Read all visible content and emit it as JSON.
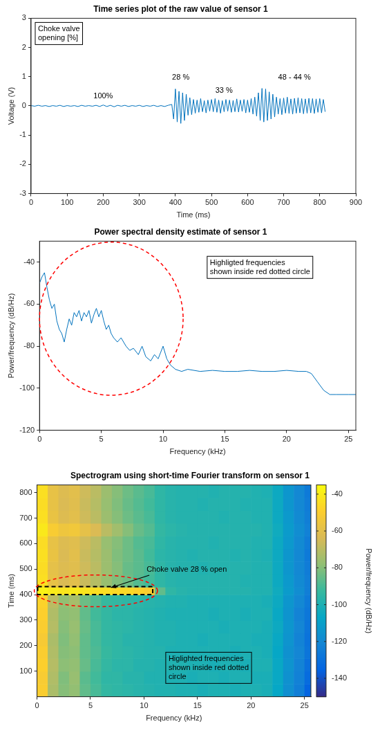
{
  "chart_data": [
    {
      "type": "line",
      "title": "Time series plot of the raw value of sensor 1",
      "x_label": "Time (ms)",
      "y_label": "Voltage (V)",
      "color": "#0072bd",
      "grid": false,
      "xlim": [
        0,
        900
      ],
      "xticks": [
        0,
        100,
        200,
        300,
        400,
        500,
        600,
        700,
        800,
        900
      ],
      "ylim": [
        -3,
        3
      ],
      "yticks": [
        -3,
        -2,
        -1,
        0,
        1,
        2,
        3
      ],
      "text_box": [
        "Choke valve",
        "opening [%]"
      ],
      "annotations": [
        "100%",
        "28 %",
        "33 %",
        "48 - 44 %"
      ],
      "x": [
        0,
        10,
        20,
        30,
        40,
        50,
        60,
        70,
        80,
        90,
        100,
        110,
        120,
        130,
        140,
        150,
        160,
        170,
        180,
        190,
        200,
        210,
        220,
        230,
        240,
        250,
        260,
        270,
        280,
        290,
        300,
        310,
        320,
        330,
        340,
        350,
        360,
        370,
        380,
        390,
        395,
        400,
        405,
        410,
        415,
        420,
        425,
        430,
        435,
        440,
        445,
        450,
        455,
        460,
        465,
        470,
        475,
        480,
        485,
        490,
        495,
        500,
        505,
        510,
        515,
        520,
        525,
        530,
        535,
        540,
        545,
        550,
        555,
        560,
        565,
        570,
        575,
        580,
        585,
        590,
        595,
        600,
        605,
        610,
        615,
        620,
        625,
        630,
        635,
        640,
        645,
        650,
        655,
        660,
        665,
        670,
        675,
        680,
        685,
        690,
        695,
        700,
        705,
        710,
        715,
        720,
        725,
        730,
        735,
        740,
        745,
        750,
        755,
        760,
        765,
        770,
        775,
        780,
        785,
        790,
        795,
        800,
        805,
        810,
        815
      ],
      "values": [
        0.01,
        -0.01,
        0.02,
        -0.01,
        0.01,
        -0.02,
        0.01,
        -0.01,
        0.02,
        -0.02,
        0.01,
        -0.01,
        0.01,
        -0.02,
        0.02,
        -0.01,
        0.01,
        -0.01,
        0.02,
        -0.02,
        0.03,
        -0.02,
        0.02,
        -0.03,
        0.02,
        -0.01,
        0.02,
        -0.02,
        0.01,
        -0.01,
        0.02,
        -0.02,
        0.01,
        -0.01,
        0.02,
        -0.02,
        0.01,
        -0.02,
        0.02,
        0.05,
        -0.45,
        0.58,
        -0.55,
        0.5,
        -0.6,
        0.45,
        -0.5,
        0.4,
        -0.32,
        0.28,
        -0.3,
        0.22,
        -0.25,
        0.2,
        -0.22,
        0.25,
        -0.2,
        0.18,
        -0.24,
        0.2,
        -0.18,
        0.22,
        -0.2,
        0.25,
        -0.22,
        0.2,
        -0.25,
        0.18,
        -0.2,
        0.22,
        -0.18,
        0.2,
        -0.22,
        0.19,
        -0.2,
        0.24,
        -0.21,
        0.2,
        -0.19,
        0.22,
        -0.24,
        0.2,
        -0.22,
        0.25,
        -0.28,
        0.3,
        -0.35,
        0.45,
        -0.5,
        0.6,
        -0.55,
        0.58,
        -0.5,
        0.48,
        -0.45,
        0.4,
        -0.38,
        0.3,
        -0.28,
        0.25,
        -0.3,
        0.27,
        -0.25,
        0.3,
        -0.26,
        0.24,
        -0.28,
        0.26,
        -0.25,
        0.28,
        -0.24,
        0.25,
        -0.27,
        0.24,
        -0.25,
        0.26,
        -0.24,
        0.25,
        -0.26,
        0.24,
        -0.22,
        0.25,
        -0.24,
        0.22,
        -0.2
      ]
    },
    {
      "type": "line",
      "title": "Power spectral density estimate of sensor 1",
      "x_label": "Frequency (kHz)",
      "y_label": "Power/frequency (dB/Hz)",
      "color": "#0072bd",
      "grid": false,
      "xlim": [
        0,
        25.6
      ],
      "xticks": [
        0,
        5,
        10,
        15,
        20,
        25
      ],
      "ylim": [
        -120,
        -30
      ],
      "yticks": [
        -120,
        -100,
        -80,
        -60,
        -40
      ],
      "text_box": [
        "Highligted frequencies",
        "shown inside red dotted circle"
      ],
      "x": [
        0,
        0.2,
        0.4,
        0.6,
        0.8,
        1,
        1.2,
        1.4,
        1.6,
        1.8,
        2,
        2.2,
        2.4,
        2.6,
        2.8,
        3,
        3.2,
        3.4,
        3.6,
        3.8,
        4,
        4.2,
        4.4,
        4.6,
        4.8,
        5,
        5.2,
        5.4,
        5.6,
        5.8,
        6,
        6.3,
        6.6,
        7,
        7.3,
        7.6,
        8,
        8.3,
        8.6,
        9,
        9.3,
        9.6,
        10,
        10.3,
        10.6,
        11,
        11.5,
        12,
        13,
        14,
        15,
        16,
        17,
        18,
        19,
        20,
        21,
        21.6,
        22,
        22.5,
        23,
        23.5,
        24,
        25,
        25.6
      ],
      "values": [
        -50,
        -47,
        -45,
        -52,
        -58,
        -62,
        -60,
        -68,
        -72,
        -74,
        -78,
        -72,
        -67,
        -70,
        -64,
        -66,
        -63,
        -68,
        -64,
        -66,
        -63,
        -69,
        -65,
        -62,
        -66,
        -63,
        -68,
        -72,
        -70,
        -74,
        -76,
        -78,
        -76,
        -80,
        -82,
        -81,
        -84,
        -80,
        -85,
        -87,
        -84,
        -86,
        -80,
        -86,
        -89,
        -91,
        -92,
        -91,
        -92,
        -91.5,
        -92,
        -92,
        -91.5,
        -92,
        -92,
        -91.5,
        -92,
        -92,
        -93,
        -97,
        -101,
        -103,
        -103,
        -103,
        -103
      ]
    },
    {
      "type": "heatmap",
      "title": "Spectrogram using short-time Fourier transform on sensor 1",
      "x_label": "Frequency (kHz)",
      "y_label": "Time (ms)",
      "grid": false,
      "xlim": [
        0,
        25.6
      ],
      "xticks": [
        0,
        5,
        10,
        15,
        20,
        25
      ],
      "ylim": [
        0,
        830
      ],
      "yticks": [
        100,
        200,
        300,
        400,
        500,
        600,
        700,
        800
      ],
      "text_box": [
        "Higlighted frequencies",
        "shown inside red dotted",
        "circle"
      ],
      "annotations": [
        "Choke valve 28 % open"
      ],
      "colorbar": {
        "label": "Power/frequency (dB/Hz)",
        "range": [
          -150,
          -35
        ],
        "ticks": [
          -140,
          -120,
          -100,
          -80,
          -60,
          -40
        ]
      },
      "x_edges": [
        0,
        1,
        2,
        3,
        4,
        5,
        6,
        7,
        8,
        9,
        10,
        11,
        12,
        13,
        14,
        15,
        16,
        17,
        18,
        19,
        20,
        21,
        22,
        23,
        24,
        25,
        25.6
      ],
      "y_edges": [
        0,
        50,
        100,
        150,
        200,
        250,
        300,
        350,
        400,
        430,
        480,
        530,
        580,
        630,
        680,
        730,
        780,
        830
      ],
      "cells": [
        [
          -50,
          -73,
          -80,
          -78,
          -86,
          -90,
          -94,
          -95,
          -96,
          -97,
          -98,
          -99,
          -99,
          -100,
          -100,
          -101,
          -100,
          -100,
          -101,
          -100,
          -100,
          -101,
          -107,
          -117,
          -124,
          -135
        ],
        [
          -51,
          -72,
          -81,
          -77,
          -87,
          -91,
          -95,
          -95,
          -97,
          -97,
          -99,
          -99,
          -100,
          -100,
          -101,
          -100,
          -100,
          -101,
          -100,
          -100,
          -101,
          -101,
          -106,
          -116,
          -123,
          -132
        ],
        [
          -49,
          -71,
          -79,
          -78,
          -85,
          -90,
          -94,
          -96,
          -96,
          -98,
          -98,
          -99,
          -99,
          -99,
          -100,
          -100,
          -101,
          -100,
          -100,
          -101,
          -100,
          -100,
          -106,
          -115,
          -122,
          -130
        ],
        [
          -50,
          -72,
          -80,
          -79,
          -86,
          -89,
          -93,
          -95,
          -96,
          -97,
          -98,
          -98,
          -100,
          -100,
          -100,
          -100,
          -100,
          -100,
          -101,
          -100,
          -100,
          -101,
          -107,
          -116,
          -121,
          -128
        ],
        [
          -52,
          -73,
          -81,
          -78,
          -86,
          -90,
          -94,
          -95,
          -97,
          -97,
          -98,
          -99,
          -99,
          -100,
          -100,
          -101,
          -100,
          -100,
          -100,
          -100,
          -101,
          -101,
          -106,
          -115,
          -122,
          -129
        ],
        [
          -50,
          -71,
          -80,
          -77,
          -85,
          -90,
          -94,
          -95,
          -96,
          -97,
          -98,
          -99,
          -99,
          -100,
          -100,
          -100,
          -100,
          -101,
          -100,
          -100,
          -100,
          -101,
          -105,
          -114,
          -121,
          -128
        ],
        [
          -49,
          -72,
          -79,
          -78,
          -86,
          -91,
          -94,
          -96,
          -96,
          -97,
          -98,
          -99,
          -100,
          -100,
          -100,
          -100,
          -101,
          -100,
          -100,
          -101,
          -100,
          -100,
          -106,
          -115,
          -122,
          -127
        ],
        [
          -48,
          -70,
          -78,
          -74,
          -84,
          -88,
          -93,
          -94,
          -95,
          -96,
          -97,
          -98,
          -99,
          -99,
          -100,
          -100,
          -100,
          -100,
          -100,
          -100,
          -100,
          -101,
          -105,
          -114,
          -120,
          -126
        ],
        [
          -38,
          -40,
          -42,
          -40,
          -42,
          -44,
          -44,
          -46,
          -46,
          -48,
          -50,
          -86,
          -95,
          -97,
          -98,
          -98,
          -98,
          -98,
          -98,
          -98,
          -99,
          -99,
          -104,
          -112,
          -118,
          -124
        ],
        [
          -44,
          -58,
          -63,
          -60,
          -67,
          -71,
          -77,
          -81,
          -84,
          -88,
          -91,
          -95,
          -97,
          -98,
          -98,
          -98,
          -98,
          -98,
          -98,
          -99,
          -99,
          -99,
          -105,
          -113,
          -119,
          -124
        ],
        [
          -45,
          -59,
          -62,
          -61,
          -66,
          -70,
          -76,
          -80,
          -85,
          -87,
          -90,
          -95,
          -97,
          -98,
          -98,
          -99,
          -98,
          -98,
          -98,
          -98,
          -99,
          -99,
          -105,
          -114,
          -120,
          -125
        ],
        [
          -44,
          -57,
          -63,
          -60,
          -67,
          -71,
          -76,
          -81,
          -84,
          -87,
          -91,
          -96,
          -97,
          -98,
          -99,
          -98,
          -98,
          -98,
          -99,
          -98,
          -99,
          -100,
          -105,
          -114,
          -120,
          -126
        ],
        [
          -45,
          -58,
          -62,
          -61,
          -66,
          -70,
          -77,
          -80,
          -84,
          -88,
          -90,
          -95,
          -97,
          -98,
          -98,
          -98,
          -99,
          -98,
          -98,
          -98,
          -99,
          -99,
          -105,
          -113,
          -119,
          -125
        ],
        [
          -41,
          -51,
          -55,
          -54,
          -59,
          -63,
          -70,
          -75,
          -80,
          -85,
          -88,
          -94,
          -96,
          -97,
          -98,
          -98,
          -98,
          -98,
          -98,
          -98,
          -98,
          -99,
          -104,
          -112,
          -118,
          -123
        ],
        [
          -44,
          -57,
          -62,
          -60,
          -66,
          -70,
          -76,
          -80,
          -84,
          -87,
          -90,
          -95,
          -97,
          -98,
          -98,
          -98,
          -98,
          -99,
          -98,
          -98,
          -99,
          -99,
          -105,
          -113,
          -119,
          -124
        ],
        [
          -45,
          -58,
          -63,
          -61,
          -67,
          -71,
          -77,
          -81,
          -85,
          -88,
          -91,
          -95,
          -97,
          -98,
          -98,
          -99,
          -98,
          -98,
          -98,
          -99,
          -99,
          -99,
          -105,
          -114,
          -120,
          -125
        ],
        [
          -44,
          -58,
          -62,
          -60,
          -66,
          -70,
          -76,
          -80,
          -84,
          -87,
          -90,
          -95,
          -97,
          -98,
          -98,
          -98,
          -99,
          -98,
          -98,
          -98,
          -99,
          -100,
          -105,
          -114,
          -120,
          -126
        ]
      ]
    }
  ]
}
